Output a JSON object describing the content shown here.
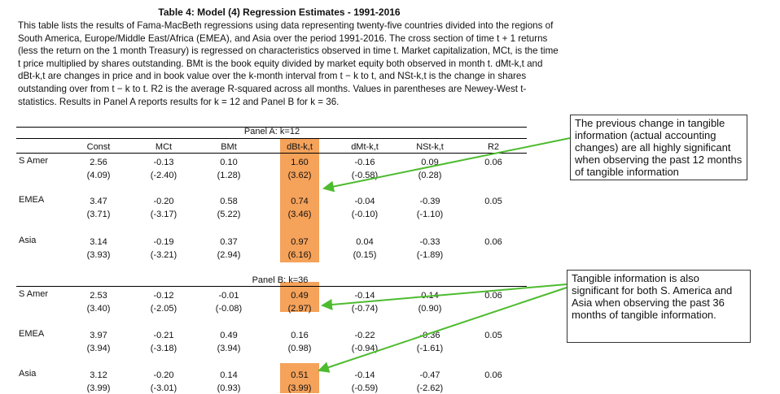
{
  "title": "Table 4: Model (4) Regression Estimates - 1991-2016",
  "caption": "This table lists the results of Fama-MacBeth regressions using data representing twenty-five countries divided into the regions of South America, Europe/Middle East/Africa (EMEA), and Asia over the period 1991-2016. The cross section of time t + 1 returns (less the return on the 1 month Treasury) is regressed on characteristics observed in time t. Market capitalization, MCt, is the time t price multiplied by shares outstanding. BMt is the book equity divided by market equity both observed in month t. dMt-k,t and dBt-k,t are changes in price and in book value over the k-month interval from t − k to t, and NSt-k,t is the change in shares outstanding over from t − k to t. R2 is the average R-squared across all months. Values in parentheses are Newey-West t-statistics. Results in Panel A reports results for k = 12 and Panel B for k = 36.",
  "highlight_color": "#f5a25a",
  "arrow_color": "#4dbb2e",
  "columns": [
    "Const",
    "MCt",
    "BMt",
    "dBt-k,t",
    "dMt-k,t",
    "NSt-k,t",
    "R2"
  ],
  "panels": [
    {
      "label": "Panel A: k=12",
      "rows": [
        {
          "region": "S Amer",
          "coef": [
            "2.56",
            "-0.13",
            "0.10",
            "1.60",
            "-0.16",
            "0.09",
            "0.06"
          ],
          "tstat": [
            "(4.09)",
            "(-2.40)",
            "(1.28)",
            "(3.62)",
            "(-0.58)",
            "(0.28)"
          ]
        },
        {
          "region": "EMEA",
          "coef": [
            "3.47",
            "-0.20",
            "0.58",
            "0.74",
            "-0.04",
            "-0.39",
            "0.05"
          ],
          "tstat": [
            "(3.71)",
            "(-3.17)",
            "(5.22)",
            "(3.46)",
            "(-0.10)",
            "(-1.10)"
          ]
        },
        {
          "region": "Asia",
          "coef": [
            "3.14",
            "-0.19",
            "0.37",
            "0.97",
            "0.04",
            "-0.33",
            "0.06"
          ],
          "tstat": [
            "(3.93)",
            "(-3.21)",
            "(2.94)",
            "(6.16)",
            "(0.15)",
            "(-1.89)"
          ]
        }
      ]
    },
    {
      "label": "Panel B: k=36",
      "rows": [
        {
          "region": "S Amer",
          "coef": [
            "2.53",
            "-0.12",
            "-0.01",
            "0.49",
            "-0.14",
            "0.14",
            "0.06"
          ],
          "tstat": [
            "(3.40)",
            "(-2.05)",
            "(-0.08)",
            "(2.97)",
            "(-0.74)",
            "(0.90)"
          ]
        },
        {
          "region": "EMEA",
          "coef": [
            "3.97",
            "-0.21",
            "0.49",
            "0.16",
            "-0.22",
            "-0.36",
            "0.05"
          ],
          "tstat": [
            "(3.94)",
            "(-3.18)",
            "(3.94)",
            "(0.98)",
            "(-0.94)",
            "(-1.61)"
          ]
        },
        {
          "region": "Asia",
          "coef": [
            "3.12",
            "-0.20",
            "0.14",
            "0.51",
            "-0.14",
            "-0.47",
            "0.06"
          ],
          "tstat": [
            "(3.99)",
            "(-3.01)",
            "(0.93)",
            "(3.99)",
            "(-0.59)",
            "(-2.62)"
          ]
        }
      ]
    }
  ],
  "annotations": [
    "The previous change in tangible information (actual accounting changes) are all highly significant when observing the past 12 months of tangible information",
    "Tangible information is also significant for both S. America and Asia when observing the past 36 months of tangible information."
  ]
}
